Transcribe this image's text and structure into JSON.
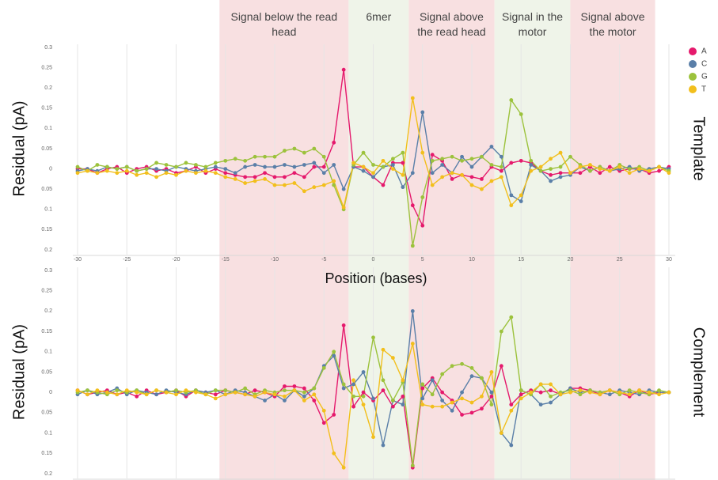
{
  "regions": [
    {
      "label": "Signal below the read head",
      "start": -15.6,
      "end": -2.5,
      "color": "#f8e0e1"
    },
    {
      "label": "6mer",
      "start": -2.5,
      "end": 3.6,
      "color": "#eff4e9"
    },
    {
      "label": "Signal above the read head",
      "start": 3.6,
      "end": 12.3,
      "color": "#f8e0e1"
    },
    {
      "label": "Signal in the motor",
      "start": 12.3,
      "end": 20,
      "color": "#eff4e9"
    },
    {
      "label": "Signal above the motor",
      "start": 20,
      "end": 28.6,
      "color": "#f8e0e1"
    }
  ],
  "chart_data": [
    {
      "type": "line",
      "ylabel": "Residual (pA)",
      "side_label": "Template",
      "xlabel": "Position (bases)",
      "grid": true,
      "x": [
        -30,
        -29,
        -28,
        -27,
        -26,
        -25,
        -24,
        -23,
        -22,
        -21,
        -20,
        -19,
        -18,
        -17,
        -16,
        -15,
        -14,
        -13,
        -12,
        -11,
        -10,
        -9,
        -8,
        -7,
        -6,
        -5,
        -4,
        -3,
        -2,
        -1,
        0,
        1,
        2,
        3,
        4,
        5,
        6,
        7,
        8,
        9,
        10,
        11,
        12,
        13,
        14,
        15,
        16,
        17,
        18,
        19,
        20,
        21,
        22,
        23,
        24,
        25,
        26,
        27,
        28,
        29,
        30
      ],
      "xlim": [
        -30,
        30
      ],
      "xticks": [
        -30,
        -25,
        -20,
        -15,
        -10,
        -5,
        0,
        5,
        10,
        15,
        20,
        25,
        30
      ],
      "ylim": [
        -0.2,
        0.3
      ],
      "yticks": [
        0.3,
        0.25,
        0.2,
        0.15,
        0.1,
        0.05,
        0,
        {
          "value": -0.05,
          "label": "0.05"
        },
        {
          "value": -0.1,
          "label": "0.1"
        },
        {
          "value": -0.15,
          "label": "0.15"
        },
        {
          "value": -0.2,
          "label": "0.2"
        }
      ],
      "series": [
        {
          "name": "A",
          "color": "#e5196c",
          "values": [
            0,
            0,
            -0.01,
            0,
            0.005,
            -0.01,
            0,
            0.005,
            -0.005,
            0,
            -0.01,
            -0.005,
            0.005,
            -0.01,
            0,
            -0.01,
            -0.015,
            -0.02,
            -0.02,
            -0.01,
            -0.02,
            -0.02,
            -0.01,
            -0.02,
            0.005,
            0.005,
            0.065,
            0.245,
            0.005,
            0.005,
            -0.02,
            -0.04,
            0.015,
            0.015,
            -0.09,
            -0.14,
            0.035,
            0.02,
            -0.025,
            -0.015,
            -0.02,
            -0.025,
            0.005,
            -0.005,
            0.015,
            0.02,
            0.015,
            -0.005,
            -0.015,
            -0.01,
            -0.01,
            -0.01,
            0.005,
            -0.01,
            0.005,
            -0.005,
            0,
            0,
            -0.01,
            -0.005,
            0.005
          ]
        },
        {
          "name": "C",
          "color": "#5a7fa8",
          "values": [
            -0.005,
            0,
            -0.005,
            0.005,
            0,
            0.005,
            -0.005,
            0,
            0,
            -0.005,
            0.005,
            0,
            -0.005,
            0,
            0.005,
            0,
            -0.01,
            0.005,
            0.01,
            0.005,
            0.005,
            0.01,
            0.005,
            0.01,
            0.015,
            -0.01,
            0.01,
            -0.05,
            0.005,
            -0.005,
            -0.02,
            0.005,
            0.01,
            -0.045,
            -0.01,
            0.14,
            -0.01,
            0.01,
            -0.01,
            0.03,
            0.005,
            0.03,
            0.055,
            0.03,
            -0.065,
            -0.08,
            0.01,
            -0.005,
            -0.03,
            -0.02,
            -0.015,
            0.005,
            -0.005,
            0.005,
            -0.005,
            0,
            0.005,
            -0.005,
            0,
            0.005,
            0
          ]
        },
        {
          "name": "G",
          "color": "#9cc23c",
          "values": [
            0.005,
            -0.005,
            0.01,
            0.005,
            0,
            0.005,
            -0.005,
            0,
            0.015,
            0.01,
            0.005,
            0.015,
            0.01,
            0.005,
            0.015,
            0.02,
            0.025,
            0.02,
            0.03,
            0.03,
            0.03,
            0.045,
            0.05,
            0.04,
            0.05,
            0.03,
            -0.04,
            -0.1,
            0.01,
            0.04,
            0.01,
            0.005,
            0.025,
            0.04,
            -0.19,
            -0.07,
            0.02,
            0.025,
            0.03,
            0.02,
            0.025,
            0.03,
            0.01,
            0.005,
            0.17,
            0.135,
            0.02,
            -0.005,
            0,
            0.005,
            0.03,
            0.01,
            -0.005,
            0.005,
            -0.005,
            0.01,
            0,
            0.005,
            -0.005,
            0.005,
            -0.005
          ]
        },
        {
          "name": "T",
          "color": "#f2bf1c",
          "values": [
            -0.01,
            -0.005,
            -0.01,
            -0.005,
            -0.01,
            -0.005,
            -0.015,
            -0.01,
            -0.02,
            -0.01,
            -0.015,
            -0.005,
            -0.01,
            -0.005,
            -0.01,
            -0.02,
            -0.025,
            -0.035,
            -0.03,
            -0.025,
            -0.04,
            -0.04,
            -0.035,
            -0.055,
            -0.045,
            -0.04,
            -0.03,
            -0.095,
            0.015,
            0.005,
            -0.01,
            0.02,
            0,
            -0.015,
            0.175,
            0.04,
            -0.04,
            -0.02,
            -0.01,
            -0.015,
            -0.04,
            -0.05,
            -0.03,
            -0.02,
            -0.09,
            -0.065,
            -0.005,
            0.005,
            0.025,
            0.04,
            -0.01,
            0.005,
            0.01,
            0,
            -0.005,
            0.005,
            -0.01,
            0,
            -0.005,
            0.005,
            -0.01
          ]
        }
      ]
    },
    {
      "type": "line",
      "ylabel": "Residual (pA)",
      "side_label": "Complement",
      "grid": true,
      "x": [
        -30,
        -29,
        -28,
        -27,
        -26,
        -25,
        -24,
        -23,
        -22,
        -21,
        -20,
        -19,
        -18,
        -17,
        -16,
        -15,
        -14,
        -13,
        -12,
        -11,
        -10,
        -9,
        -8,
        -7,
        -6,
        -5,
        -4,
        -3,
        -2,
        -1,
        0,
        1,
        2,
        3,
        4,
        5,
        6,
        7,
        8,
        9,
        10,
        11,
        12,
        13,
        14,
        15,
        16,
        17,
        18,
        19,
        20,
        21,
        22,
        23,
        24,
        25,
        26,
        27,
        28,
        29,
        30
      ],
      "xlim": [
        -30,
        30
      ],
      "ylim": [
        -0.2,
        0.3
      ],
      "yticks": [
        0.3,
        0.25,
        0.2,
        0.15,
        0.1,
        0.05,
        0,
        {
          "value": -0.05,
          "label": "0.05"
        },
        {
          "value": -0.1,
          "label": "0.1"
        },
        {
          "value": -0.15,
          "label": "0.15"
        },
        {
          "value": -0.2,
          "label": "0.2"
        }
      ],
      "series": [
        {
          "color": "#e5196c",
          "values": [
            0.005,
            -0.005,
            0,
            0.005,
            -0.005,
            0,
            -0.01,
            0.005,
            -0.005,
            0,
            0.005,
            -0.01,
            0.005,
            0,
            -0.005,
            0.005,
            0,
            -0.005,
            0.005,
            0,
            -0.01,
            0.015,
            0.015,
            0.01,
            -0.02,
            -0.075,
            -0.055,
            0.165,
            -0.035,
            0,
            -0.02,
            0.005,
            -0.035,
            -0.01,
            -0.185,
            0.01,
            0.035,
            0,
            -0.02,
            -0.055,
            -0.05,
            -0.04,
            -0.01,
            0.065,
            -0.03,
            -0.005,
            0.005,
            0,
            0.005,
            -0.005,
            0.01,
            0.01,
            0.005,
            -0.005,
            0.005,
            0,
            -0.01,
            0.005,
            -0.005,
            0,
            0
          ]
        },
        {
          "color": "#5a7fa8",
          "values": [
            -0.005,
            0.005,
            -0.005,
            0,
            0.01,
            -0.005,
            0.005,
            0,
            -0.005,
            0.005,
            0,
            -0.005,
            0.005,
            0,
            0.005,
            -0.005,
            0.005,
            0,
            -0.01,
            -0.02,
            -0.005,
            -0.02,
            0.005,
            -0.01,
            0.01,
            0.065,
            0.09,
            0.01,
            0.02,
            0.05,
            -0.015,
            -0.13,
            -0.02,
            -0.03,
            0.2,
            -0.015,
            0.03,
            -0.02,
            -0.045,
            0,
            0.04,
            0.035,
            0,
            -0.1,
            -0.13,
            0.005,
            -0.005,
            -0.03,
            -0.025,
            -0.005,
            0.01,
            0,
            0.005,
            0,
            -0.005,
            0.005,
            0,
            -0.005,
            0.005,
            0,
            0
          ]
        },
        {
          "color": "#9cc23c",
          "values": [
            0,
            0.005,
            0,
            -0.005,
            0.005,
            0,
            0.005,
            -0.005,
            0.005,
            0,
            0.005,
            0,
            0.005,
            -0.005,
            0.005,
            0.005,
            0,
            0.01,
            -0.005,
            0.005,
            0,
            0.005,
            0.005,
            0,
            0.01,
            0.06,
            0.1,
            0.02,
            -0.01,
            -0.01,
            0.135,
            0.03,
            -0.02,
            0.025,
            -0.18,
            0.02,
            -0.005,
            0.045,
            0.065,
            0.07,
            0.06,
            0.035,
            -0.03,
            0.15,
            0.185,
            0.005,
            -0.005,
            0.02,
            -0.01,
            0,
            0.005,
            -0.005,
            0.005,
            0,
            0.005,
            -0.005,
            0.005,
            0,
            -0.005,
            0.005,
            0
          ]
        },
        {
          "color": "#f2bf1c",
          "values": [
            0.005,
            -0.005,
            0.005,
            0,
            -0.005,
            0.005,
            0,
            -0.005,
            0.005,
            0,
            -0.005,
            0.005,
            0,
            -0.005,
            -0.015,
            -0.005,
            0,
            -0.005,
            -0.01,
            0,
            -0.005,
            -0.01,
            0.005,
            -0.02,
            -0.005,
            -0.045,
            -0.15,
            -0.185,
            0.03,
            -0.03,
            -0.11,
            0.105,
            0.085,
            0.03,
            0.12,
            -0.03,
            -0.035,
            -0.035,
            -0.025,
            -0.015,
            -0.025,
            -0.01,
            0.05,
            -0.1,
            -0.045,
            -0.015,
            0,
            0.02,
            0.02,
            -0.005,
            0,
            0.005,
            0,
            -0.005,
            0.005,
            0,
            -0.005,
            0.005,
            0,
            -0.005,
            0
          ]
        }
      ]
    }
  ]
}
